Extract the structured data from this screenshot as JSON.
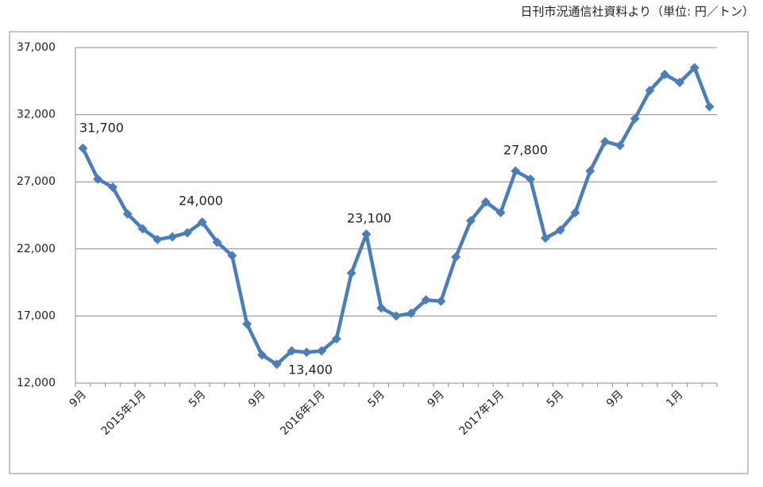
{
  "chart_data": {
    "type": "line",
    "source": "日刊市況通信社資料より（単位: 円／トン）",
    "categories": [
      "9月",
      null,
      null,
      null,
      "2015年1月",
      null,
      null,
      null,
      "5月",
      null,
      null,
      null,
      "9月",
      null,
      null,
      null,
      "2016年1月",
      null,
      null,
      null,
      "5月",
      null,
      null,
      null,
      "9月",
      null,
      null,
      null,
      "2017年1月",
      null,
      null,
      null,
      "5月",
      null,
      null,
      null,
      "9月",
      null,
      null,
      null,
      "1月",
      null,
      null
    ],
    "series": [
      {
        "color": "#4a7ebb",
        "values": [
          29500,
          27200,
          26600,
          24600,
          23500,
          22700,
          22900,
          23200,
          24000,
          22500,
          21500,
          16400,
          14100,
          13400,
          14400,
          14300,
          14400,
          15300,
          20200,
          23100,
          17600,
          17000,
          17200,
          18200,
          18100,
          21400,
          24100,
          25500,
          24700,
          27800,
          27200,
          22800,
          23400,
          24700,
          27800,
          30000,
          29700,
          31700,
          33800,
          35000,
          34400,
          35500,
          32600
        ]
      }
    ],
    "annotations": [
      "31,700",
      "24,000",
      "13,400",
      "23,100",
      "27,800"
    ],
    "ylim": [
      12000,
      37000
    ],
    "yticks": [
      {
        "value": 12000,
        "label": "12,000"
      },
      {
        "value": 17000,
        "label": "17,000"
      },
      {
        "value": 22000,
        "label": "22,000"
      },
      {
        "value": 27000,
        "label": "27,000"
      },
      {
        "value": 32000,
        "label": "32,000"
      },
      {
        "value": 37000,
        "label": "37,000"
      }
    ],
    "grid": true
  }
}
